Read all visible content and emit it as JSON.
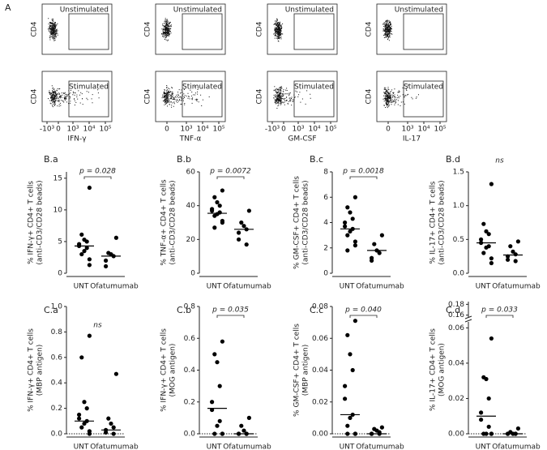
{
  "flow": {
    "label": "A",
    "ylabel": "CD4",
    "rows": [
      "Unstimulated",
      "Stimulated"
    ],
    "columns": [
      {
        "xlabel": "IFN-γ",
        "xticks": [
          "-10³",
          "0",
          "10³",
          "10⁴",
          "10⁵"
        ]
      },
      {
        "xlabel": "TNF-α",
        "xticks": [
          "0",
          "10³",
          "10⁴",
          "10⁵"
        ]
      },
      {
        "xlabel": "GM-CSF",
        "xticks": [
          "-10³",
          "0",
          "10³",
          "10⁴",
          "10⁵"
        ]
      },
      {
        "xlabel": "IL-17",
        "xticks": [
          "0",
          "10³",
          "10⁴",
          "10⁵"
        ]
      }
    ]
  },
  "chart_data": [
    {
      "type": "dot",
      "label": "B.a",
      "ylabel": [
        "% IFN-γ+ CD4+ T cells",
        "(anti-CD3/CD28 beads)"
      ],
      "categories": [
        "UNT",
        "Ofatumumab"
      ],
      "values": [
        [
          13.5,
          6.1,
          5.3,
          5.0,
          4.6,
          4.3,
          4.0,
          3.5,
          3.0,
          2.2,
          1.3
        ],
        [
          5.6,
          3.2,
          3.0,
          2.7,
          2.0,
          1.1
        ]
      ],
      "medians": [
        4.3,
        2.7
      ],
      "annotation": "p = 0.028",
      "ylim": [
        0,
        16
      ],
      "yticks": [
        0,
        5,
        10,
        15
      ],
      "color": "#000000"
    },
    {
      "type": "dot",
      "label": "B.b",
      "ylabel": [
        "% TNF-α+ CD4+ T cells",
        "(anti-CD3/CD28 beads)"
      ],
      "categories": [
        "UNT",
        "Ofatumumab"
      ],
      "values": [
        [
          49,
          45,
          42,
          40,
          38,
          37,
          36,
          35,
          34,
          31,
          30,
          27
        ],
        [
          37,
          30,
          28,
          26,
          24,
          20,
          17
        ]
      ],
      "medians": [
        35.5,
        26
      ],
      "annotation": "p = 0.0072",
      "ylim": [
        0,
        60
      ],
      "yticks": [
        0,
        20,
        40,
        60
      ],
      "color": "#000000"
    },
    {
      "type": "dot",
      "label": "B.c",
      "ylabel": [
        "% GM-CSF+ CD4+ T cells",
        "(anti-CD3/CD28 beads)"
      ],
      "categories": [
        "UNT",
        "Ofatumumab"
      ],
      "values": [
        [
          6.0,
          5.2,
          4.8,
          4.3,
          4.0,
          3.7,
          3.5,
          3.3,
          3.0,
          2.5,
          2.2,
          1.8
        ],
        [
          3.0,
          2.3,
          1.8,
          1.6,
          1.2,
          1.0
        ]
      ],
      "medians": [
        3.5,
        1.8
      ],
      "annotation": "p = 0.0018",
      "ylim": [
        0,
        8
      ],
      "yticks": [
        0,
        2,
        4,
        6,
        8
      ],
      "color": "#000000"
    },
    {
      "type": "dot",
      "label": "B.d",
      "ylabel": [
        "% IL-17+ CD4+ T cells",
        "(anti-CD3/CD28 beads)"
      ],
      "categories": [
        "UNT",
        "Ofatumumab"
      ],
      "values": [
        [
          1.32,
          0.73,
          0.62,
          0.58,
          0.5,
          0.45,
          0.4,
          0.38,
          0.3,
          0.22,
          0.15
        ],
        [
          0.47,
          0.4,
          0.32,
          0.28,
          0.25,
          0.2,
          0.18
        ]
      ],
      "medians": [
        0.45,
        0.27
      ],
      "annotation": "ns",
      "ylim": [
        0,
        1.5
      ],
      "yticks": [
        {
          "value": 0,
          "label": "0.0"
        },
        {
          "value": 0.5,
          "label": "0.5"
        },
        {
          "value": 1,
          "label": "1.0"
        },
        {
          "value": 1.5,
          "label": "1.5"
        }
      ],
      "color": "#000000"
    },
    {
      "type": "dot",
      "label": "C.a",
      "ylabel": [
        "% IFN-γ+ CD4+ T cells",
        "(MBP antigen)"
      ],
      "categories": [
        "UNT",
        "Ofatumumab"
      ],
      "values": [
        [
          0.77,
          0.6,
          0.25,
          0.2,
          0.15,
          0.12,
          0.1,
          0.08,
          0.05,
          0.02,
          0.0
        ],
        [
          0.47,
          0.12,
          0.08,
          0.05,
          0.03,
          0.01,
          0.0
        ]
      ],
      "medians": [
        0.1,
        0.03
      ],
      "annotation": "ns",
      "ylim": [
        0,
        1.0
      ],
      "yticks": [
        {
          "value": 0,
          "label": "0.0"
        },
        {
          "value": 0.2,
          "label": "0.2"
        },
        {
          "value": 0.4,
          "label": "0.4"
        },
        {
          "value": 0.6,
          "label": "0.6"
        },
        {
          "value": 0.8,
          "label": "0.8"
        },
        {
          "value": 1,
          "label": "1.0"
        }
      ],
      "reference_line": 0,
      "color": "#000000"
    },
    {
      "type": "dot",
      "label": "C.b",
      "ylabel": [
        "% IFN-γ+ CD4+ T cells",
        "(MOG antigen)"
      ],
      "categories": [
        "UNT",
        "Ofatumumab"
      ],
      "values": [
        [
          0.58,
          0.5,
          0.45,
          0.3,
          0.2,
          0.15,
          0.08,
          0.05,
          0.0,
          0.0,
          0.0
        ],
        [
          0.1,
          0.05,
          0.02,
          0.0,
          0.0,
          0.0,
          0.0
        ]
      ],
      "medians": [
        0.16,
        0
      ],
      "annotation": "p = 0.035",
      "ylim": [
        0,
        0.8
      ],
      "yticks": [
        {
          "value": 0,
          "label": "0.0"
        },
        {
          "value": 0.2,
          "label": "0.2"
        },
        {
          "value": 0.4,
          "label": "0.4"
        },
        {
          "value": 0.6,
          "label": "0.6"
        },
        {
          "value": 0.8,
          "label": "0.8"
        }
      ],
      "reference_line": 0,
      "color": "#000000"
    },
    {
      "type": "dot",
      "label": "C.c",
      "ylabel": [
        "% GM-CSF+ CD4+ T cells",
        "(MBP antigen)"
      ],
      "categories": [
        "UNT",
        "Ofatumumab"
      ],
      "values": [
        [
          0.071,
          0.062,
          0.05,
          0.04,
          0.03,
          0.022,
          0.012,
          0.01,
          0.005,
          0.0,
          0.0,
          0.0
        ],
        [
          0.004,
          0.003,
          0.002,
          0.001,
          0.0,
          0.0,
          0.0
        ]
      ],
      "medians": [
        0.012,
        0
      ],
      "annotation": "p = 0.040",
      "ylim": [
        0,
        0.08
      ],
      "yticks": [
        {
          "value": 0,
          "label": "0.00"
        },
        {
          "value": 0.02,
          "label": "0.02"
        },
        {
          "value": 0.04,
          "label": "0.04"
        },
        {
          "value": 0.06,
          "label": "0.06"
        },
        {
          "value": 0.08,
          "label": "0.08"
        }
      ],
      "reference_line": 0,
      "color": "#000000"
    },
    {
      "type": "dot",
      "label": "C.d",
      "ylabel": [
        "% IL-17+ CD4+ T cells",
        "(MOG antigen)"
      ],
      "categories": [
        "UNT",
        "Ofatumumab"
      ],
      "values": [
        [
          0.054,
          0.032,
          0.031,
          0.02,
          0.012,
          0.008,
          0.004,
          0.0,
          0.0,
          0.0,
          0.0
        ],
        [
          0.003,
          0.001,
          0.0,
          0.0,
          0.0,
          0.0,
          0.0
        ]
      ],
      "medians": [
        0.01,
        0
      ],
      "annotation": "p = 0.033",
      "ylim": [
        0,
        0.062
      ],
      "yticks": [
        {
          "value": 0,
          "label": "0.00"
        },
        {
          "value": 0.02,
          "label": "0.02"
        },
        {
          "value": 0.04,
          "label": "0.04"
        },
        {
          "value": 0.06,
          "label": "0.06"
        }
      ],
      "ybreak": {
        "ylim": [
          0.155,
          0.185
        ],
        "yticks": [
          {
            "value": 0.16,
            "label": "0.16"
          },
          {
            "value": 0.18,
            "label": "0.18"
          }
        ]
      },
      "reference_line": 0,
      "color": "#000000"
    }
  ]
}
